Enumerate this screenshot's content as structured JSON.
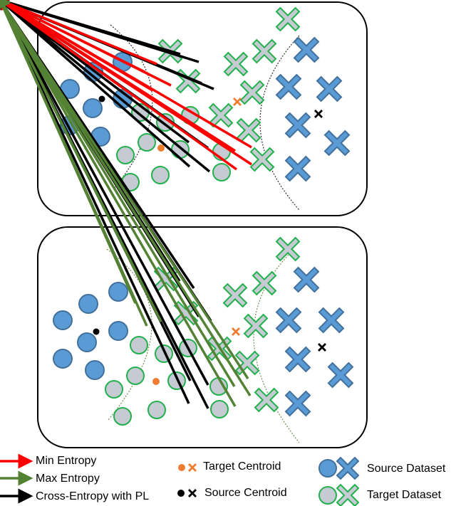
{
  "legend": {
    "min_entropy": "Min Entropy",
    "max_entropy": "Max Entropy",
    "cross_entropy": "Cross-Entropy with PL",
    "target_centroid": "Target Centroid",
    "source_centroid": "Source Centroid",
    "source_dataset": "Source Dataset",
    "target_dataset": "Target Dataset"
  },
  "colors": {
    "min_entropy_arrow": "#ff0000",
    "max_entropy_arrow": "#548235",
    "cross_entropy_arrow": "#000000",
    "source_fill": "#5b9bd5",
    "target_fill": "#c5cad3",
    "target_stroke": "#22b14c",
    "target_centroid": "#ed7d31",
    "source_centroid": "#000000"
  }
}
